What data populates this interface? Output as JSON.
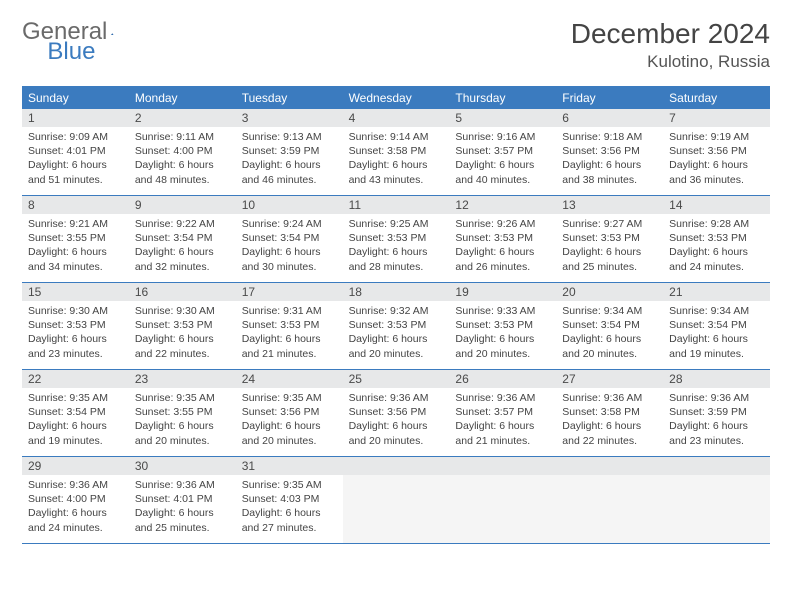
{
  "brand": {
    "part1": "General",
    "part2": "Blue"
  },
  "title": "December 2024",
  "location": "Kulotino, Russia",
  "colors": {
    "accent": "#3b7bbf",
    "grayBar": "#e7e8e9",
    "text": "#444444"
  },
  "daysOfWeek": [
    "Sunday",
    "Monday",
    "Tuesday",
    "Wednesday",
    "Thursday",
    "Friday",
    "Saturday"
  ],
  "weeks": [
    [
      {
        "n": "1",
        "sr": "Sunrise: 9:09 AM",
        "ss": "Sunset: 4:01 PM",
        "dl1": "Daylight: 6 hours",
        "dl2": "and 51 minutes."
      },
      {
        "n": "2",
        "sr": "Sunrise: 9:11 AM",
        "ss": "Sunset: 4:00 PM",
        "dl1": "Daylight: 6 hours",
        "dl2": "and 48 minutes."
      },
      {
        "n": "3",
        "sr": "Sunrise: 9:13 AM",
        "ss": "Sunset: 3:59 PM",
        "dl1": "Daylight: 6 hours",
        "dl2": "and 46 minutes."
      },
      {
        "n": "4",
        "sr": "Sunrise: 9:14 AM",
        "ss": "Sunset: 3:58 PM",
        "dl1": "Daylight: 6 hours",
        "dl2": "and 43 minutes."
      },
      {
        "n": "5",
        "sr": "Sunrise: 9:16 AM",
        "ss": "Sunset: 3:57 PM",
        "dl1": "Daylight: 6 hours",
        "dl2": "and 40 minutes."
      },
      {
        "n": "6",
        "sr": "Sunrise: 9:18 AM",
        "ss": "Sunset: 3:56 PM",
        "dl1": "Daylight: 6 hours",
        "dl2": "and 38 minutes."
      },
      {
        "n": "7",
        "sr": "Sunrise: 9:19 AM",
        "ss": "Sunset: 3:56 PM",
        "dl1": "Daylight: 6 hours",
        "dl2": "and 36 minutes."
      }
    ],
    [
      {
        "n": "8",
        "sr": "Sunrise: 9:21 AM",
        "ss": "Sunset: 3:55 PM",
        "dl1": "Daylight: 6 hours",
        "dl2": "and 34 minutes."
      },
      {
        "n": "9",
        "sr": "Sunrise: 9:22 AM",
        "ss": "Sunset: 3:54 PM",
        "dl1": "Daylight: 6 hours",
        "dl2": "and 32 minutes."
      },
      {
        "n": "10",
        "sr": "Sunrise: 9:24 AM",
        "ss": "Sunset: 3:54 PM",
        "dl1": "Daylight: 6 hours",
        "dl2": "and 30 minutes."
      },
      {
        "n": "11",
        "sr": "Sunrise: 9:25 AM",
        "ss": "Sunset: 3:53 PM",
        "dl1": "Daylight: 6 hours",
        "dl2": "and 28 minutes."
      },
      {
        "n": "12",
        "sr": "Sunrise: 9:26 AM",
        "ss": "Sunset: 3:53 PM",
        "dl1": "Daylight: 6 hours",
        "dl2": "and 26 minutes."
      },
      {
        "n": "13",
        "sr": "Sunrise: 9:27 AM",
        "ss": "Sunset: 3:53 PM",
        "dl1": "Daylight: 6 hours",
        "dl2": "and 25 minutes."
      },
      {
        "n": "14",
        "sr": "Sunrise: 9:28 AM",
        "ss": "Sunset: 3:53 PM",
        "dl1": "Daylight: 6 hours",
        "dl2": "and 24 minutes."
      }
    ],
    [
      {
        "n": "15",
        "sr": "Sunrise: 9:30 AM",
        "ss": "Sunset: 3:53 PM",
        "dl1": "Daylight: 6 hours",
        "dl2": "and 23 minutes."
      },
      {
        "n": "16",
        "sr": "Sunrise: 9:30 AM",
        "ss": "Sunset: 3:53 PM",
        "dl1": "Daylight: 6 hours",
        "dl2": "and 22 minutes."
      },
      {
        "n": "17",
        "sr": "Sunrise: 9:31 AM",
        "ss": "Sunset: 3:53 PM",
        "dl1": "Daylight: 6 hours",
        "dl2": "and 21 minutes."
      },
      {
        "n": "18",
        "sr": "Sunrise: 9:32 AM",
        "ss": "Sunset: 3:53 PM",
        "dl1": "Daylight: 6 hours",
        "dl2": "and 20 minutes."
      },
      {
        "n": "19",
        "sr": "Sunrise: 9:33 AM",
        "ss": "Sunset: 3:53 PM",
        "dl1": "Daylight: 6 hours",
        "dl2": "and 20 minutes."
      },
      {
        "n": "20",
        "sr": "Sunrise: 9:34 AM",
        "ss": "Sunset: 3:54 PM",
        "dl1": "Daylight: 6 hours",
        "dl2": "and 20 minutes."
      },
      {
        "n": "21",
        "sr": "Sunrise: 9:34 AM",
        "ss": "Sunset: 3:54 PM",
        "dl1": "Daylight: 6 hours",
        "dl2": "and 19 minutes."
      }
    ],
    [
      {
        "n": "22",
        "sr": "Sunrise: 9:35 AM",
        "ss": "Sunset: 3:54 PM",
        "dl1": "Daylight: 6 hours",
        "dl2": "and 19 minutes."
      },
      {
        "n": "23",
        "sr": "Sunrise: 9:35 AM",
        "ss": "Sunset: 3:55 PM",
        "dl1": "Daylight: 6 hours",
        "dl2": "and 20 minutes."
      },
      {
        "n": "24",
        "sr": "Sunrise: 9:35 AM",
        "ss": "Sunset: 3:56 PM",
        "dl1": "Daylight: 6 hours",
        "dl2": "and 20 minutes."
      },
      {
        "n": "25",
        "sr": "Sunrise: 9:36 AM",
        "ss": "Sunset: 3:56 PM",
        "dl1": "Daylight: 6 hours",
        "dl2": "and 20 minutes."
      },
      {
        "n": "26",
        "sr": "Sunrise: 9:36 AM",
        "ss": "Sunset: 3:57 PM",
        "dl1": "Daylight: 6 hours",
        "dl2": "and 21 minutes."
      },
      {
        "n": "27",
        "sr": "Sunrise: 9:36 AM",
        "ss": "Sunset: 3:58 PM",
        "dl1": "Daylight: 6 hours",
        "dl2": "and 22 minutes."
      },
      {
        "n": "28",
        "sr": "Sunrise: 9:36 AM",
        "ss": "Sunset: 3:59 PM",
        "dl1": "Daylight: 6 hours",
        "dl2": "and 23 minutes."
      }
    ],
    [
      {
        "n": "29",
        "sr": "Sunrise: 9:36 AM",
        "ss": "Sunset: 4:00 PM",
        "dl1": "Daylight: 6 hours",
        "dl2": "and 24 minutes."
      },
      {
        "n": "30",
        "sr": "Sunrise: 9:36 AM",
        "ss": "Sunset: 4:01 PM",
        "dl1": "Daylight: 6 hours",
        "dl2": "and 25 minutes."
      },
      {
        "n": "31",
        "sr": "Sunrise: 9:35 AM",
        "ss": "Sunset: 4:03 PM",
        "dl1": "Daylight: 6 hours",
        "dl2": "and 27 minutes."
      },
      null,
      null,
      null,
      null
    ]
  ]
}
